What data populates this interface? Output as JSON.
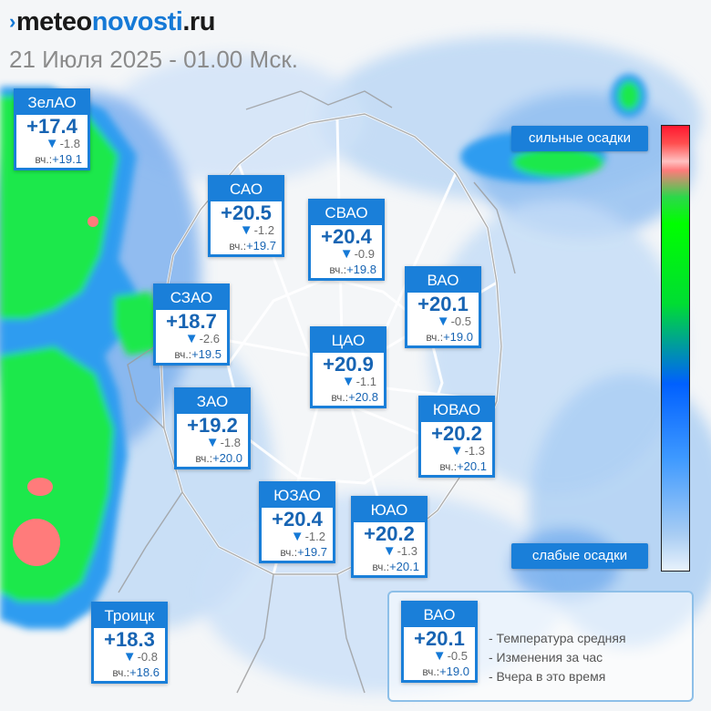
{
  "header": {
    "logo_mark": "›",
    "logo_main": "meteo",
    "logo_accent": "novosti",
    "logo_tld": ".ru",
    "datetime": "21 Июля 2025 - 01.00 Мск."
  },
  "districts": [
    {
      "id": "zelao",
      "name": "ЗелАО",
      "temp": "+17.4",
      "delta": "-1.8",
      "yesterday_label": "вч.:",
      "yesterday": "+19.1"
    },
    {
      "id": "sao",
      "name": "САО",
      "temp": "+20.5",
      "delta": "-1.2",
      "yesterday_label": "вч.:",
      "yesterday": "+19.7"
    },
    {
      "id": "svao",
      "name": "СВАО",
      "temp": "+20.4",
      "delta": "-0.9",
      "yesterday_label": "вч.:",
      "yesterday": "+19.8"
    },
    {
      "id": "vao",
      "name": "ВАО",
      "temp": "+20.1",
      "delta": "-0.5",
      "yesterday_label": "вч.:",
      "yesterday": "+19.0"
    },
    {
      "id": "szao",
      "name": "СЗАО",
      "temp": "+18.7",
      "delta": "-2.6",
      "yesterday_label": "вч.:",
      "yesterday": "+19.5"
    },
    {
      "id": "cao",
      "name": "ЦАО",
      "temp": "+20.9",
      "delta": "-1.1",
      "yesterday_label": "вч.:",
      "yesterday": "+20.8"
    },
    {
      "id": "zao",
      "name": "ЗАО",
      "temp": "+19.2",
      "delta": "-1.8",
      "yesterday_label": "вч.:",
      "yesterday": "+20.0"
    },
    {
      "id": "yuvao",
      "name": "ЮВАО",
      "temp": "+20.2",
      "delta": "-1.3",
      "yesterday_label": "вч.:",
      "yesterday": "+20.1"
    },
    {
      "id": "yuzao",
      "name": "ЮЗАО",
      "temp": "+20.4",
      "delta": "-1.2",
      "yesterday_label": "вч.:",
      "yesterday": "+19.7"
    },
    {
      "id": "yuao",
      "name": "ЮАО",
      "temp": "+20.2",
      "delta": "-1.3",
      "yesterday_label": "вч.:",
      "yesterday": "+20.1"
    },
    {
      "id": "troitsk",
      "name": "Троицк",
      "temp": "+18.3",
      "delta": "-0.8",
      "yesterday_label": "вч.:",
      "yesterday": "+18.6"
    }
  ],
  "scale": {
    "top_label": "сильные осадки",
    "bottom_label": "слабые осадки",
    "colors": [
      "#ff1830",
      "#ffc0c0",
      "#00ff00",
      "#00dd33",
      "#0060ff",
      "#3f9aff",
      "#e8f2fc"
    ]
  },
  "legend": {
    "sample": {
      "name": "ВАО",
      "temp": "+20.1",
      "delta": "-0.5",
      "yesterday_label": "вч.:",
      "yesterday": "+19.0"
    },
    "items": [
      "- Температура средняя",
      "- Изменения за час",
      "- Вчера в это время"
    ]
  },
  "icons": {
    "delta": "down-triangle-icon"
  }
}
